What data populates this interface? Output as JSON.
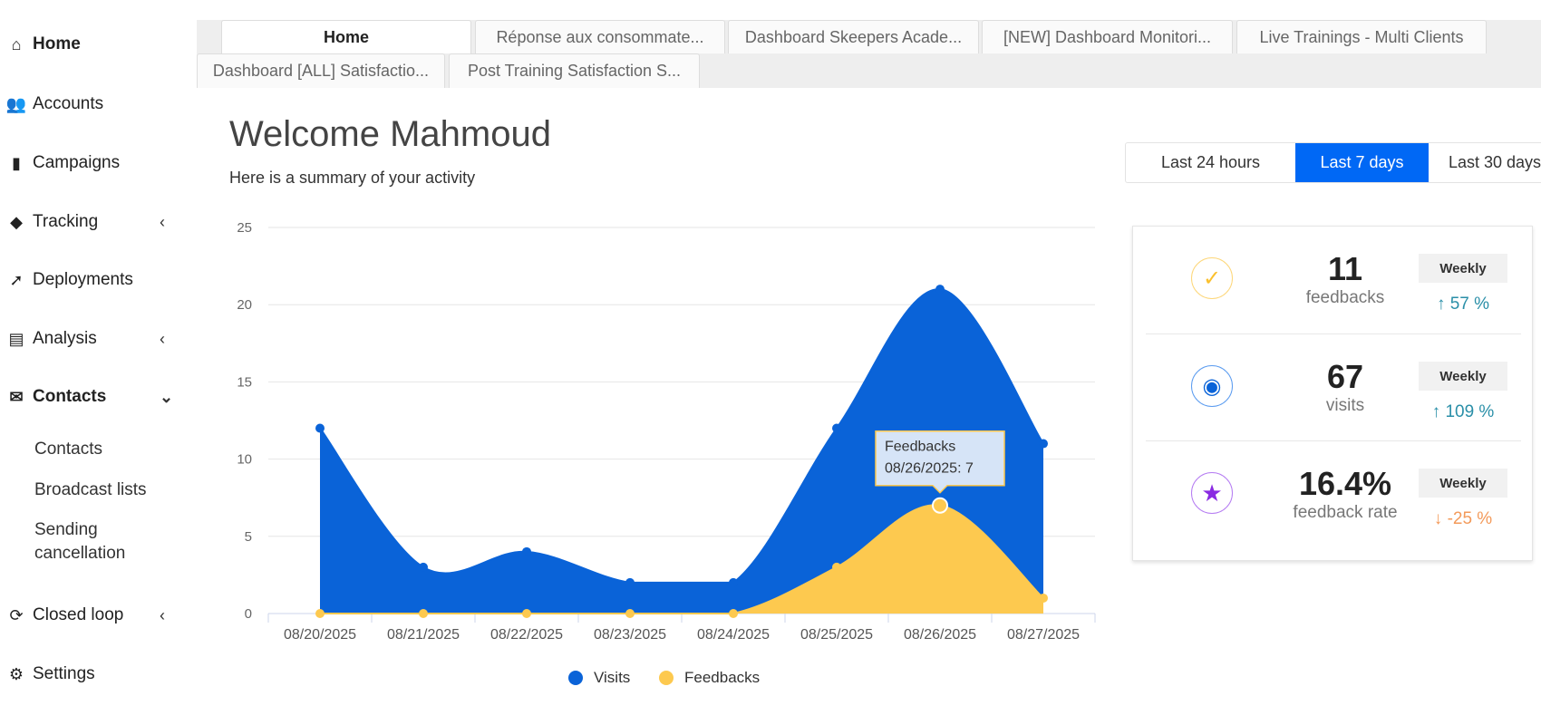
{
  "sidebar": {
    "items": [
      {
        "label": "Home",
        "icon": "home-icon"
      },
      {
        "label": "Accounts",
        "icon": "users-icon"
      },
      {
        "label": "Campaigns",
        "icon": "file-icon"
      },
      {
        "label": "Tracking",
        "icon": "tag-icon"
      },
      {
        "label": "Deployments",
        "icon": "rocket-icon"
      },
      {
        "label": "Analysis",
        "icon": "chart-icon"
      },
      {
        "label": "Contacts",
        "icon": "envelope-icon"
      },
      {
        "label": "Closed loop",
        "icon": "sync-icon"
      },
      {
        "label": "Settings",
        "icon": "gear-icon"
      }
    ],
    "contacts_sub": [
      "Contacts",
      "Broadcast lists",
      "Sending cancellation"
    ]
  },
  "tabs": {
    "row1": [
      "Home",
      "Réponse aux consommate...",
      "Dashboard Skeepers Acade...",
      "[NEW] Dashboard Monitori...",
      "Live Trainings - Multi Clients"
    ],
    "row2": [
      "Dashboard [ALL] Satisfactio...",
      "Post Training Satisfaction S..."
    ]
  },
  "header": {
    "title": "Welcome Mahmoud",
    "subtitle": "Here is a summary of your activity"
  },
  "range": {
    "options": [
      "Last 24 hours",
      "Last 7 days",
      "Last 30 days"
    ],
    "selected": "Last 7 days"
  },
  "stats": [
    {
      "value": "11",
      "label": "feedbacks",
      "period": "Weekly",
      "change": "57 %",
      "direction": "up",
      "color": "#fbc02d"
    },
    {
      "value": "67",
      "label": "visits",
      "period": "Weekly",
      "change": "109 %",
      "direction": "up",
      "color": "#0a63d8"
    },
    {
      "value": "16.4%",
      "label": "feedback rate",
      "period": "Weekly",
      "change": "-25 %",
      "direction": "down",
      "color": "#8a2be2"
    }
  ],
  "chart_data": {
    "type": "area",
    "categories": [
      "08/20/2025",
      "08/21/2025",
      "08/22/2025",
      "08/23/2025",
      "08/24/2025",
      "08/25/2025",
      "08/26/2025",
      "08/27/2025"
    ],
    "series": [
      {
        "name": "Visits",
        "color": "#0a63d8",
        "values": [
          12,
          3,
          4,
          2,
          2,
          12,
          21,
          11
        ]
      },
      {
        "name": "Feedbacks",
        "color": "#fdc94f",
        "values": [
          0,
          0,
          0,
          0,
          0,
          3,
          7,
          1
        ]
      }
    ],
    "yticks": [
      0,
      5,
      10,
      15,
      20,
      25
    ],
    "ylim": [
      0,
      25
    ],
    "tooltip": {
      "title": "Feedbacks",
      "text": "08/26/2025: 7"
    }
  }
}
